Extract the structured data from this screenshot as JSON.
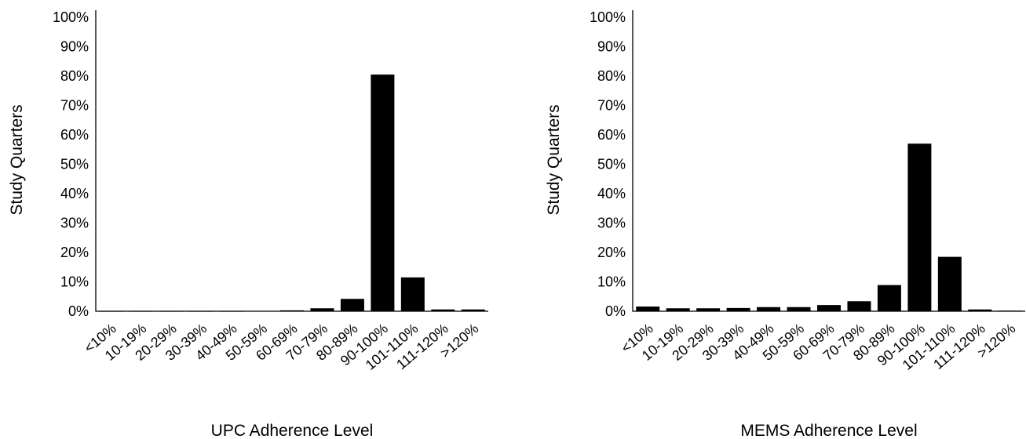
{
  "chart_data": [
    {
      "type": "bar",
      "xlabel": "UPC Adherence Level",
      "ylabel": "Study Quarters",
      "categories": [
        "<10%",
        "10-19%",
        "20-29%",
        "30-39%",
        "40-49%",
        "50-59%",
        "60-69%",
        "70-79%",
        "80-89%",
        "90-100%",
        "101-110%",
        "111-120%",
        ">120%"
      ],
      "values": [
        0,
        0,
        0,
        0,
        0,
        0.1,
        0.3,
        1.0,
        4.2,
        80.5,
        11.5,
        0.6,
        0.6
      ],
      "ylim": [
        0,
        100
      ],
      "yticks": [
        "0%",
        "10%",
        "20%",
        "30%",
        "40%",
        "50%",
        "60%",
        "70%",
        "80%",
        "90%",
        "100%"
      ],
      "bar_color": "#000000",
      "grid": false
    },
    {
      "type": "bar",
      "xlabel": "MEMS Adherence Level",
      "ylabel": "Study Quarters",
      "categories": [
        "<10%",
        "10-19%",
        "20-29%",
        "30-39%",
        "40-49%",
        "50-59%",
        "60-69%",
        "70-79%",
        "80-89%",
        "90-100%",
        "101-110%",
        "111-120%",
        ">120%"
      ],
      "values": [
        1.6,
        1.0,
        1.0,
        1.1,
        1.4,
        1.4,
        2.1,
        3.4,
        8.9,
        57.0,
        18.5,
        0.6,
        0.2
      ],
      "ylim": [
        0,
        100
      ],
      "yticks": [
        "0%",
        "10%",
        "20%",
        "30%",
        "40%",
        "50%",
        "60%",
        "70%",
        "80%",
        "90%",
        "100%"
      ],
      "bar_color": "#000000",
      "grid": false
    }
  ]
}
